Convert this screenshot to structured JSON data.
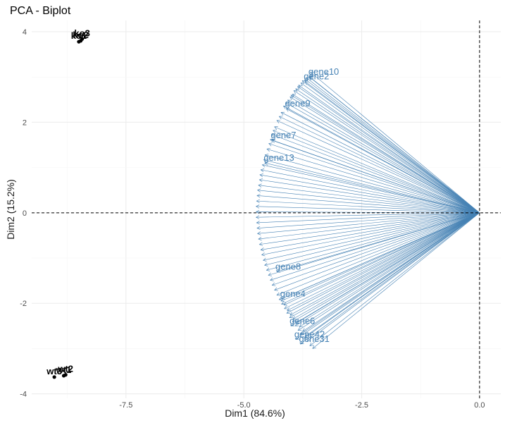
{
  "chart_data": {
    "type": "scatter",
    "title": "PCA - Biplot",
    "xlabel": "Dim1 (84.6%)",
    "ylabel": "Dim2 (15.2%)",
    "xlim": [
      -9.5,
      0.45
    ],
    "ylim": [
      -4.1,
      4.25
    ],
    "xticks": [
      -7.5,
      -5.0,
      -2.5,
      0.0
    ],
    "xtick_labels": [
      "-7.5",
      "-5.0",
      "-2.5",
      "0.0"
    ],
    "yticks": [
      -4,
      -2,
      0,
      2,
      4
    ],
    "ytick_labels": [
      "-4",
      "-2",
      "0",
      "2",
      "4"
    ],
    "grid": true,
    "reference_lines": {
      "x": 0,
      "y": 0,
      "style": "dashed"
    },
    "variable_color": "#4682B4",
    "individual_color": "#000000",
    "individuals": [
      {
        "name": "ko1",
        "x": -8.5,
        "y": 3.78
      },
      {
        "name": "ko2",
        "x": -8.46,
        "y": 3.8
      },
      {
        "name": "ko3",
        "x": -8.43,
        "y": 3.84
      },
      {
        "name": "wt1",
        "x": -8.82,
        "y": -3.6
      },
      {
        "name": "wt2",
        "x": -8.78,
        "y": -3.58
      },
      {
        "name": "wt3",
        "x": -9.02,
        "y": -3.63
      }
    ],
    "variables": [
      {
        "name": "gene10",
        "x": -3.6,
        "y": 3.0
      },
      {
        "name": "gene2",
        "x": -3.7,
        "y": 2.9
      },
      {
        "name": "gene31",
        "x": -3.8,
        "y": -2.9
      },
      {
        "name": "gene42",
        "x": -3.9,
        "y": -2.8
      },
      {
        "name": "gene6",
        "x": -4.0,
        "y": -2.5
      },
      {
        "name": "gene4",
        "x": -4.2,
        "y": -1.9
      },
      {
        "name": "gene8",
        "x": -4.3,
        "y": -1.3
      },
      {
        "name": "gene13",
        "x": -4.55,
        "y": 1.1
      },
      {
        "name": "gene7",
        "x": -4.4,
        "y": 1.6
      },
      {
        "name": "gene9",
        "x": -4.1,
        "y": 2.3
      }
    ],
    "loadings": [
      [
        -3.59,
        3.11
      ],
      [
        -3.62,
        3.01
      ],
      [
        -3.71,
        2.96
      ],
      [
        -3.79,
        2.87
      ],
      [
        -3.86,
        2.79
      ],
      [
        -3.94,
        2.7
      ],
      [
        -3.97,
        2.62
      ],
      [
        -4.02,
        2.56
      ],
      [
        -4.07,
        2.49
      ],
      [
        -4.11,
        2.43
      ],
      [
        -4.16,
        2.36
      ],
      [
        -4.21,
        2.22
      ],
      [
        -4.25,
        2.13
      ],
      [
        -4.3,
        2.04
      ],
      [
        -4.35,
        1.9
      ],
      [
        -4.38,
        1.82
      ],
      [
        -4.41,
        1.73
      ],
      [
        -4.44,
        1.62
      ],
      [
        -4.47,
        1.53
      ],
      [
        -4.51,
        1.41
      ],
      [
        -4.55,
        1.28
      ],
      [
        -4.58,
        1.17
      ],
      [
        -4.61,
        1.06
      ],
      [
        -4.64,
        0.95
      ],
      [
        -4.66,
        0.84
      ],
      [
        -4.67,
        0.73
      ],
      [
        -4.69,
        0.61
      ],
      [
        -4.71,
        0.5
      ],
      [
        -4.72,
        0.38
      ],
      [
        -4.73,
        0.26
      ],
      [
        -4.74,
        0.14
      ],
      [
        -4.74,
        0.02
      ],
      [
        -4.74,
        -0.1
      ],
      [
        -4.73,
        -0.22
      ],
      [
        -4.72,
        -0.34
      ],
      [
        -4.71,
        -0.46
      ],
      [
        -4.69,
        -0.58
      ],
      [
        -4.67,
        -0.7
      ],
      [
        -4.64,
        -0.82
      ],
      [
        -4.62,
        -0.93
      ],
      [
        -4.59,
        -1.05
      ],
      [
        -4.56,
        -1.16
      ],
      [
        -4.52,
        -1.27
      ],
      [
        -4.48,
        -1.38
      ],
      [
        -4.44,
        -1.49
      ],
      [
        -4.4,
        -1.6
      ],
      [
        -4.35,
        -1.71
      ],
      [
        -4.3,
        -1.82
      ],
      [
        -4.25,
        -1.92
      ],
      [
        -4.2,
        -2.02
      ],
      [
        -4.14,
        -2.12
      ],
      [
        -4.09,
        -2.22
      ],
      [
        -4.03,
        -2.32
      ],
      [
        -3.97,
        -2.41
      ],
      [
        -3.91,
        -2.5
      ],
      [
        -3.85,
        -2.6
      ],
      [
        -3.79,
        -2.68
      ],
      [
        -3.72,
        -2.77
      ],
      [
        -3.66,
        -2.84
      ],
      [
        -3.6,
        -2.94
      ],
      [
        -3.54,
        -3.0
      ],
      [
        -3.68,
        -2.72
      ],
      [
        -3.75,
        -2.62
      ],
      [
        -3.82,
        -2.52
      ],
      [
        -3.89,
        -2.44
      ],
      [
        -3.96,
        -2.35
      ],
      [
        -4.02,
        -2.26
      ],
      [
        -4.08,
        -2.16
      ],
      [
        -4.15,
        -2.04
      ],
      [
        -4.21,
        -1.95
      ],
      [
        -3.9,
        2.74
      ],
      [
        -3.84,
        2.82
      ],
      [
        -3.76,
        2.92
      ],
      [
        -3.68,
        2.99
      ],
      [
        -4.0,
        2.6
      ]
    ]
  }
}
